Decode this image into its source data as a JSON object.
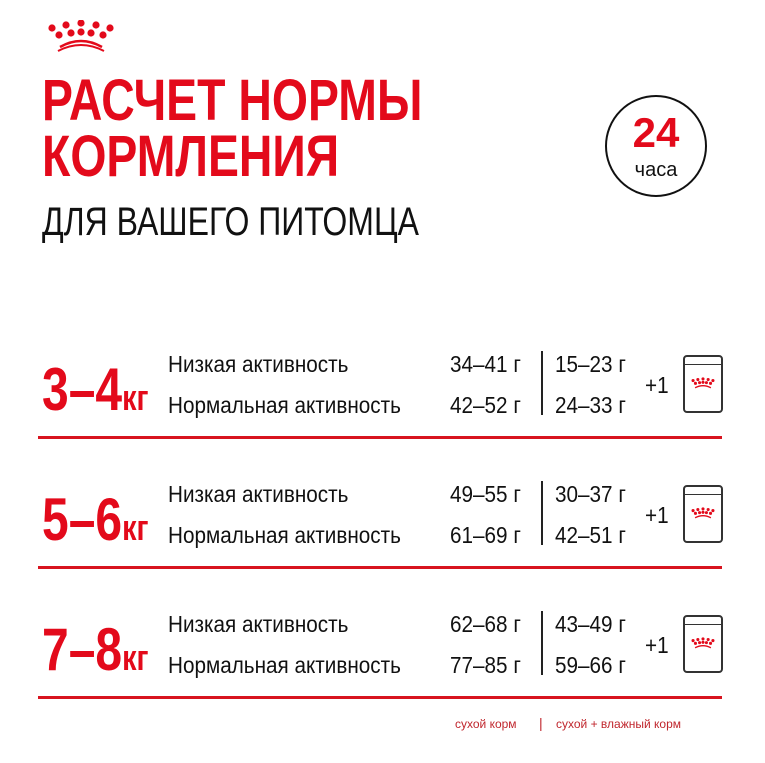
{
  "brand": {
    "logo": "royal-canin-crown-logo",
    "color": "#e30a1b"
  },
  "title": {
    "line1": "РАСЧЕТ НОРМЫ",
    "line2": "КОРМЛЕНИЯ",
    "line3": "ДЛЯ ВАШЕГО ПИТОМЦА"
  },
  "badge": {
    "number": "24",
    "unit": "часа"
  },
  "rows": [
    {
      "weight": "3–4",
      "unit": "кг",
      "low_label": "Низкая активность",
      "normal_label": "Нормальная активность",
      "low_dry": "34–41 г",
      "normal_dry": "42–52 г",
      "low_mixed": "15–23 г",
      "normal_mixed": "24–33 г",
      "plus": "+1"
    },
    {
      "weight": "5–6",
      "unit": "кг",
      "low_label": "Низкая активность",
      "normal_label": "Нормальная активность",
      "low_dry": "49–55 г",
      "normal_dry": "61–69 г",
      "low_mixed": "30–37 г",
      "normal_mixed": "42–51 г",
      "plus": "+1"
    },
    {
      "weight": "7–8",
      "unit": "кг",
      "low_label": "Низкая активность",
      "normal_label": "Нормальная активность",
      "low_dry": "62–68 г",
      "normal_dry": "77–85 г",
      "low_mixed": "43–49 г",
      "normal_mixed": "59–66 г",
      "plus": "+1"
    }
  ],
  "legend": {
    "dry": "сухой корм",
    "separator": "|",
    "mixed": "сухой + влажный корм"
  }
}
